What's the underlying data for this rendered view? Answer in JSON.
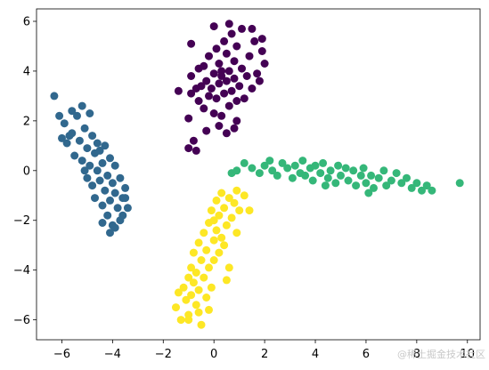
{
  "watermark": "@稀土掘金技术社区",
  "chart_data": {
    "type": "scatter",
    "title": "",
    "xlabel": "",
    "ylabel": "",
    "xlim": [
      -7,
      10.5
    ],
    "ylim": [
      -6.8,
      6.5
    ],
    "x_ticks": [
      -6,
      -4,
      -2,
      0,
      2,
      4,
      6,
      8,
      10
    ],
    "y_ticks": [
      -6,
      -4,
      -2,
      0,
      2,
      4,
      6
    ],
    "grid": false,
    "legend": "none",
    "series": [
      {
        "color": "#440154",
        "center": [
          0.4,
          3.6
        ],
        "points": [
          [
            -0.9,
            3.1
          ],
          [
            -0.9,
            3.8
          ],
          [
            -0.7,
            3.3
          ],
          [
            -0.6,
            2.8
          ],
          [
            -0.6,
            4.1
          ],
          [
            -0.5,
            3.4
          ],
          [
            -0.4,
            2.5
          ],
          [
            -0.4,
            4.2
          ],
          [
            -0.3,
            3.6
          ],
          [
            -0.2,
            3.0
          ],
          [
            -0.2,
            4.6
          ],
          [
            -0.1,
            3.3
          ],
          [
            0.0,
            2.3
          ],
          [
            0.0,
            3.9
          ],
          [
            0.1,
            4.9
          ],
          [
            0.1,
            2.9
          ],
          [
            0.2,
            3.5
          ],
          [
            0.2,
            4.3
          ],
          [
            0.3,
            2.2
          ],
          [
            0.3,
            3.8
          ],
          [
            0.4,
            5.2
          ],
          [
            0.4,
            3.1
          ],
          [
            0.5,
            3.6
          ],
          [
            0.5,
            4.7
          ],
          [
            0.6,
            2.6
          ],
          [
            0.6,
            4.0
          ],
          [
            0.7,
            3.2
          ],
          [
            0.7,
            5.5
          ],
          [
            0.8,
            3.7
          ],
          [
            0.8,
            4.4
          ],
          [
            0.9,
            2.8
          ],
          [
            0.9,
            5.0
          ],
          [
            1.0,
            3.4
          ],
          [
            1.1,
            4.1
          ],
          [
            1.2,
            2.9
          ],
          [
            1.3,
            3.8
          ],
          [
            1.4,
            4.6
          ],
          [
            1.5,
            3.3
          ],
          [
            1.6,
            5.2
          ],
          [
            1.7,
            3.9
          ],
          [
            -1.4,
            3.2
          ],
          [
            -1.0,
            2.1
          ],
          [
            -0.8,
            1.2
          ],
          [
            -0.9,
            5.1
          ],
          [
            0.0,
            5.8
          ],
          [
            0.6,
            5.9
          ],
          [
            1.1,
            5.7
          ],
          [
            1.5,
            5.7
          ],
          [
            2.0,
            4.3
          ],
          [
            1.9,
            5.3
          ],
          [
            0.2,
            1.8
          ],
          [
            0.8,
            1.7
          ],
          [
            -0.3,
            1.6
          ],
          [
            0.5,
            1.5
          ],
          [
            0.9,
            2.0
          ],
          [
            -1.0,
            0.9
          ],
          [
            -0.7,
            0.8
          ],
          [
            1.9,
            4.8
          ],
          [
            1.8,
            3.6
          ],
          [
            0.3,
            4.0
          ]
        ]
      },
      {
        "color": "#31688e",
        "center": [
          -4.8,
          0.1
        ],
        "points": [
          [
            -6.3,
            3.0
          ],
          [
            -5.9,
            1.9
          ],
          [
            -5.8,
            1.1
          ],
          [
            -5.6,
            2.4
          ],
          [
            -5.6,
            1.5
          ],
          [
            -5.5,
            0.6
          ],
          [
            -5.4,
            2.2
          ],
          [
            -5.3,
            1.2
          ],
          [
            -5.2,
            2.6
          ],
          [
            -5.2,
            0.4
          ],
          [
            -5.1,
            1.7
          ],
          [
            -5.0,
            0.9
          ],
          [
            -5.0,
            -0.3
          ],
          [
            -4.9,
            2.3
          ],
          [
            -4.9,
            0.2
          ],
          [
            -4.8,
            1.4
          ],
          [
            -4.8,
            -0.6
          ],
          [
            -4.7,
            0.7
          ],
          [
            -4.7,
            -1.1
          ],
          [
            -4.6,
            1.1
          ],
          [
            -4.6,
            0.0
          ],
          [
            -4.5,
            -0.4
          ],
          [
            -4.5,
            0.8
          ],
          [
            -4.4,
            -1.4
          ],
          [
            -4.4,
            0.3
          ],
          [
            -4.3,
            -0.8
          ],
          [
            -4.3,
            1.0
          ],
          [
            -4.2,
            -0.2
          ],
          [
            -4.2,
            -1.8
          ],
          [
            -4.1,
            0.5
          ],
          [
            -4.1,
            -1.2
          ],
          [
            -4.0,
            -0.5
          ],
          [
            -4.0,
            -2.2
          ],
          [
            -3.9,
            -0.9
          ],
          [
            -3.9,
            0.2
          ],
          [
            -3.8,
            -1.5
          ],
          [
            -3.7,
            -0.3
          ],
          [
            -3.7,
            -2.0
          ],
          [
            -3.6,
            -1.1
          ],
          [
            -3.5,
            -0.7
          ],
          [
            -3.6,
            -1.8
          ],
          [
            -3.4,
            -1.5
          ],
          [
            -4.1,
            -2.5
          ],
          [
            -3.9,
            -2.3
          ],
          [
            -6.0,
            1.3
          ],
          [
            -5.7,
            1.4
          ],
          [
            -6.1,
            2.2
          ],
          [
            -3.5,
            -1.1
          ],
          [
            -4.4,
            -2.1
          ],
          [
            -5.1,
            0.0
          ]
        ]
      },
      {
        "color": "#35b779",
        "center": [
          4.8,
          -0.2
        ],
        "points": [
          [
            0.7,
            -0.1
          ],
          [
            0.9,
            0.0
          ],
          [
            1.2,
            0.3
          ],
          [
            1.5,
            0.1
          ],
          [
            1.8,
            -0.1
          ],
          [
            2.0,
            0.2
          ],
          [
            2.3,
            0.0
          ],
          [
            2.5,
            -0.2
          ],
          [
            2.7,
            0.3
          ],
          [
            2.9,
            0.1
          ],
          [
            3.1,
            -0.3
          ],
          [
            3.2,
            0.2
          ],
          [
            3.4,
            -0.1
          ],
          [
            3.5,
            0.4
          ],
          [
            3.6,
            -0.2
          ],
          [
            3.8,
            0.1
          ],
          [
            3.9,
            -0.4
          ],
          [
            4.0,
            0.2
          ],
          [
            4.2,
            -0.1
          ],
          [
            4.3,
            0.3
          ],
          [
            4.5,
            -0.3
          ],
          [
            4.6,
            0.0
          ],
          [
            4.8,
            -0.5
          ],
          [
            4.9,
            0.2
          ],
          [
            5.0,
            -0.2
          ],
          [
            5.2,
            0.1
          ],
          [
            5.3,
            -0.4
          ],
          [
            5.5,
            0.0
          ],
          [
            5.6,
            -0.6
          ],
          [
            5.8,
            -0.2
          ],
          [
            5.9,
            0.1
          ],
          [
            6.0,
            -0.5
          ],
          [
            6.2,
            -0.2
          ],
          [
            6.3,
            -0.7
          ],
          [
            6.5,
            -0.3
          ],
          [
            6.7,
            0.0
          ],
          [
            6.8,
            -0.6
          ],
          [
            7.0,
            -0.4
          ],
          [
            7.2,
            -0.1
          ],
          [
            7.4,
            -0.5
          ],
          [
            7.6,
            -0.3
          ],
          [
            7.8,
            -0.7
          ],
          [
            8.0,
            -0.5
          ],
          [
            8.2,
            -0.8
          ],
          [
            8.4,
            -0.6
          ],
          [
            8.6,
            -0.8
          ],
          [
            9.7,
            -0.5
          ],
          [
            6.1,
            -0.9
          ],
          [
            4.4,
            -0.6
          ],
          [
            2.2,
            0.4
          ]
        ]
      },
      {
        "color": "#fde725",
        "center": [
          -0.1,
          -3.5
        ],
        "points": [
          [
            -1.5,
            -5.5
          ],
          [
            -1.3,
            -6.0
          ],
          [
            -1.2,
            -4.7
          ],
          [
            -1.1,
            -5.2
          ],
          [
            -1.0,
            -4.3
          ],
          [
            -1.0,
            -5.8
          ],
          [
            -0.9,
            -3.9
          ],
          [
            -0.9,
            -5.0
          ],
          [
            -0.8,
            -4.5
          ],
          [
            -0.8,
            -3.3
          ],
          [
            -0.7,
            -5.4
          ],
          [
            -0.7,
            -4.1
          ],
          [
            -0.6,
            -2.9
          ],
          [
            -0.6,
            -4.8
          ],
          [
            -0.5,
            -3.6
          ],
          [
            -0.5,
            -6.2
          ],
          [
            -0.4,
            -2.5
          ],
          [
            -0.4,
            -4.3
          ],
          [
            -0.3,
            -3.2
          ],
          [
            -0.3,
            -5.1
          ],
          [
            -0.2,
            -2.1
          ],
          [
            -0.2,
            -3.9
          ],
          [
            -0.1,
            -1.6
          ],
          [
            -0.1,
            -4.7
          ],
          [
            0.0,
            -2.8
          ],
          [
            0.0,
            -3.6
          ],
          [
            0.1,
            -1.2
          ],
          [
            0.1,
            -2.4
          ],
          [
            0.2,
            -3.3
          ],
          [
            0.2,
            -1.8
          ],
          [
            0.3,
            -2.7
          ],
          [
            0.3,
            -0.9
          ],
          [
            0.4,
            -1.5
          ],
          [
            0.4,
            -3.0
          ],
          [
            0.5,
            -2.2
          ],
          [
            0.6,
            -1.1
          ],
          [
            0.7,
            -1.9
          ],
          [
            0.8,
            -1.3
          ],
          [
            0.9,
            -2.5
          ],
          [
            1.0,
            -1.6
          ],
          [
            1.2,
            -1.0
          ],
          [
            1.4,
            -1.6
          ],
          [
            -1.0,
            -6.0
          ],
          [
            -0.6,
            -5.7
          ],
          [
            0.6,
            -3.9
          ],
          [
            0.5,
            -4.4
          ],
          [
            -0.2,
            -5.6
          ],
          [
            -1.4,
            -4.9
          ],
          [
            0.9,
            -0.8
          ],
          [
            0.0,
            -2.0
          ]
        ]
      }
    ]
  }
}
